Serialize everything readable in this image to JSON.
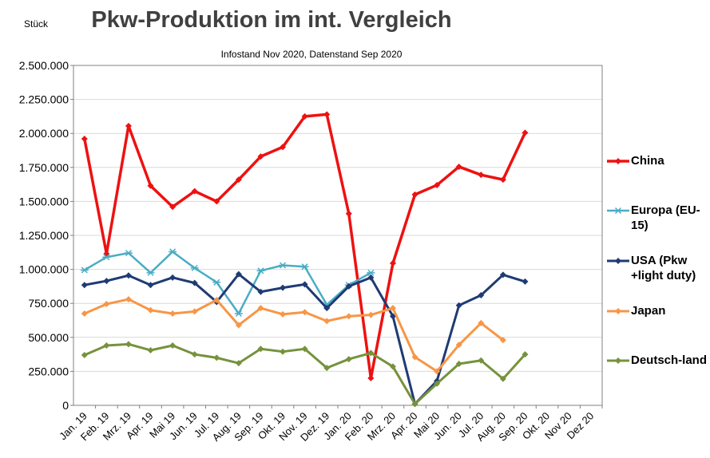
{
  "chart_data": {
    "type": "line",
    "title": "Pkw-Produktion im int. Vergleich",
    "subtitle": "Infostand  Nov 2020,  Datenstand  Sep 2020",
    "y_label": "Stück",
    "categories": [
      "Jan. 19",
      "Feb. 19",
      "Mrz. 19",
      "Apr. 19",
      "Mai 19",
      "Jun. 19",
      "Jul. 19",
      "Aug. 19",
      "Sep. 19",
      "Okt. 19",
      "Nov. 19",
      "Dez. 19",
      "Jan. 20",
      "Feb. 20",
      "Mrz. 20",
      "Apr. 20",
      "Mai 20",
      "Jun. 20",
      "Jul. 20",
      "Aug. 20",
      "Sep. 20",
      "Okt. 20",
      "Nov 20",
      "Dez 20"
    ],
    "ylim": [
      0,
      2500000
    ],
    "yticks": [
      {
        "value": 0,
        "label": "0"
      },
      {
        "value": 250000,
        "label": "250.000"
      },
      {
        "value": 500000,
        "label": "500.000"
      },
      {
        "value": 750000,
        "label": "750.000"
      },
      {
        "value": 1000000,
        "label": "1.000.000"
      },
      {
        "value": 1250000,
        "label": "1.250.000"
      },
      {
        "value": 1500000,
        "label": "1.500.000"
      },
      {
        "value": 1750000,
        "label": "1.750.000"
      },
      {
        "value": 2000000,
        "label": "2.000.000"
      },
      {
        "value": 2250000,
        "label": "2.250.000"
      },
      {
        "value": 2500000,
        "label": "2.500.000"
      }
    ],
    "grid": true,
    "series": [
      {
        "name": "China",
        "color": "#ee1111",
        "marker": "diamond",
        "width": 3.5,
        "values": [
          1960000,
          1115000,
          2055000,
          1615000,
          1460000,
          1575000,
          1500000,
          1660000,
          1830000,
          1900000,
          2125000,
          2140000,
          1410000,
          200000,
          1045000,
          1550000,
          1620000,
          1755000,
          1695000,
          1660000,
          2005000,
          null,
          null,
          null
        ]
      },
      {
        "name": "Europa (EU-15)",
        "color": "#4bacc6",
        "marker": "star",
        "width": 2.5,
        "values": [
          995000,
          1090000,
          1120000,
          975000,
          1130000,
          1010000,
          905000,
          675000,
          990000,
          1030000,
          1020000,
          740000,
          885000,
          975000,
          null,
          null,
          null,
          null,
          null,
          null,
          null,
          null,
          null,
          null
        ]
      },
      {
        "name": "USA (Pkw +light duty)",
        "color": "#1f3b73",
        "marker": "diamond",
        "width": 3,
        "values": [
          885000,
          915000,
          955000,
          885000,
          940000,
          900000,
          760000,
          965000,
          835000,
          865000,
          890000,
          715000,
          875000,
          940000,
          655000,
          10000,
          180000,
          735000,
          810000,
          960000,
          910000,
          null,
          null,
          null
        ]
      },
      {
        "name": "Japan",
        "color": "#f79646",
        "marker": "diamond",
        "width": 3,
        "values": [
          675000,
          745000,
          780000,
          700000,
          675000,
          690000,
          775000,
          590000,
          715000,
          670000,
          685000,
          620000,
          655000,
          665000,
          715000,
          355000,
          250000,
          445000,
          605000,
          480000,
          null,
          null,
          null,
          null
        ]
      },
      {
        "name": "Deutsch-land",
        "color": "#76923c",
        "marker": "diamond",
        "width": 3,
        "values": [
          370000,
          440000,
          450000,
          405000,
          440000,
          375000,
          350000,
          310000,
          415000,
          395000,
          415000,
          275000,
          340000,
          385000,
          285000,
          10000,
          160000,
          305000,
          330000,
          195000,
          375000,
          null,
          null,
          null
        ]
      }
    ]
  }
}
